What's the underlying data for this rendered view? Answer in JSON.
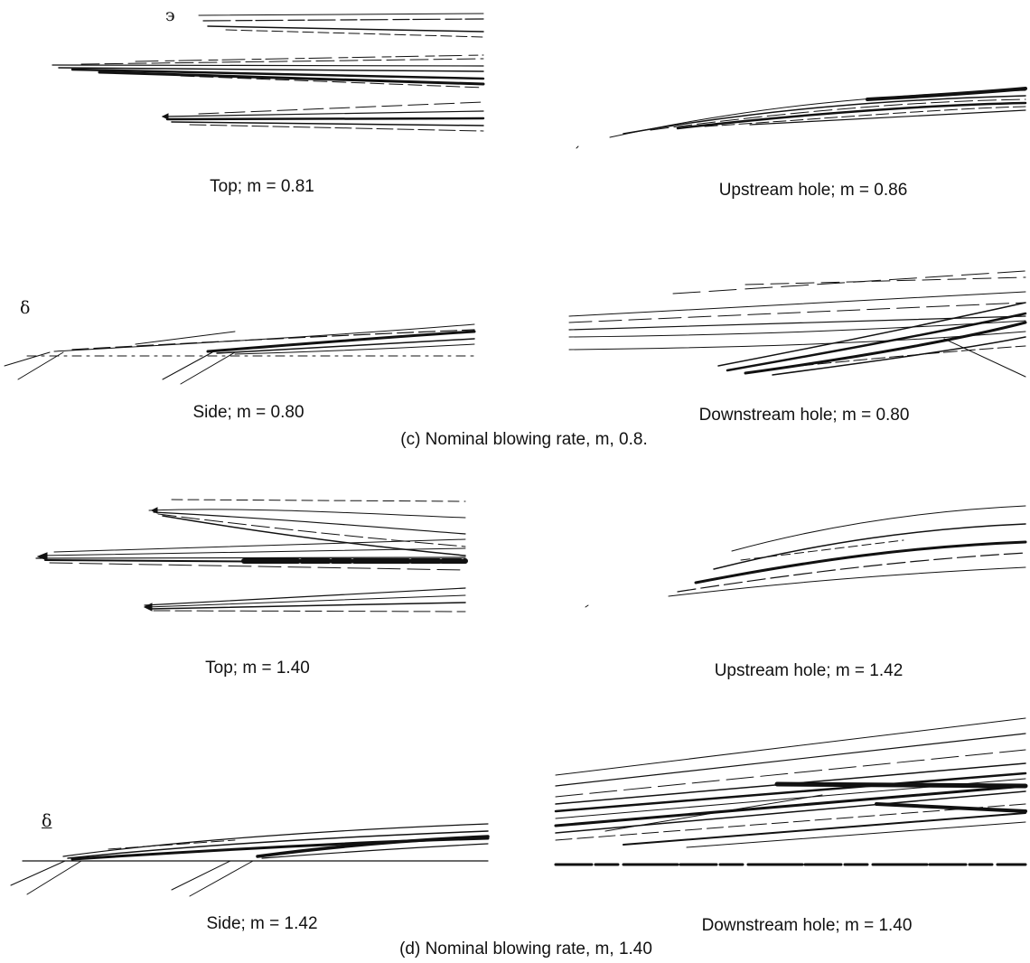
{
  "figure": {
    "section_c": {
      "caption": "(c) Nominal blowing rate, m, 0.8.",
      "panels": {
        "top": "Top; m = 0.81",
        "upstream": "Upstream hole; m = 0.86",
        "side": "Side; m = 0.80",
        "downstream": "Downstream hole; m = 0.80"
      },
      "delta_label": "δ"
    },
    "section_d": {
      "caption": "(d) Nominal blowing rate, m, 1.40",
      "panels": {
        "top": "Top; m = 1.40",
        "upstream": "Upstream hole; m = 1.42",
        "side": "Side; m = 1.42",
        "downstream": "Downstream hole; m = 1.40"
      },
      "delta_label": "δ"
    },
    "stray_mark": "϶"
  },
  "colors": {
    "ink": "#111111",
    "background": "#ffffff"
  }
}
